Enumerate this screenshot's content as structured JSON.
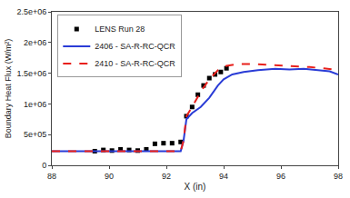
{
  "chart_data": {
    "type": "line",
    "x_label": "X (in)",
    "y_label": "Boundary Heat Flux (W/m²)",
    "xlim": [
      88,
      98
    ],
    "xticks": [
      88,
      90,
      92,
      94,
      96,
      98
    ],
    "ylim": [
      0,
      2500000
    ],
    "yticks": [
      0,
      {
        "value": 500000,
        "label": "5e+05"
      },
      {
        "value": 1000000,
        "label": "1e+06"
      },
      {
        "value": 1500000,
        "label": "1.5e+06"
      },
      {
        "value": 2000000,
        "label": "2e+06"
      },
      {
        "value": 2500000,
        "label": "2.5e+06"
      }
    ],
    "grid": false,
    "legend": "top left",
    "series": [
      {
        "name": "LENS Run 28",
        "type": "scatter",
        "marker": "square",
        "color": "#000000",
        "x": [
          89.5,
          89.8,
          90.1,
          90.4,
          90.7,
          91.0,
          91.3,
          91.6,
          91.9,
          92.2,
          92.5,
          92.7,
          92.9,
          93.1,
          93.3,
          93.5,
          93.7,
          93.9,
          94.1
        ],
        "values": [
          230000,
          250000,
          240000,
          260000,
          250000,
          240000,
          260000,
          350000,
          360000,
          360000,
          380000,
          800000,
          950000,
          1150000,
          1300000,
          1420000,
          1480000,
          1520000,
          1580000
        ]
      },
      {
        "name": "2406 - SA-R-RC-QCR",
        "type": "line",
        "line_style": "solid",
        "color": "#2a3cd6",
        "x": [
          88,
          92.5,
          92.6,
          92.7,
          92.9,
          93.2,
          93.5,
          93.8,
          94.0,
          94.3,
          94.7,
          95.2,
          95.8,
          96.3,
          96.8,
          97.3,
          97.7,
          98
        ],
        "values": [
          230000,
          230000,
          400000,
          750000,
          850000,
          950000,
          1100000,
          1300000,
          1400000,
          1480000,
          1520000,
          1550000,
          1570000,
          1560000,
          1570000,
          1550000,
          1530000,
          1480000
        ]
      },
      {
        "name": "2410 - SA-R-RC-QCR",
        "type": "line",
        "line_style": "dash",
        "color": "#e8201c",
        "x": [
          88,
          92.5,
          92.6,
          92.7,
          92.9,
          93.2,
          93.5,
          93.8,
          94.1,
          94.5,
          95.0,
          95.5,
          96.0,
          96.5,
          97.0,
          97.5,
          98
        ],
        "values": [
          230000,
          230000,
          400000,
          800000,
          950000,
          1200000,
          1400000,
          1550000,
          1620000,
          1650000,
          1650000,
          1640000,
          1630000,
          1620000,
          1600000,
          1580000,
          1550000
        ]
      }
    ]
  }
}
